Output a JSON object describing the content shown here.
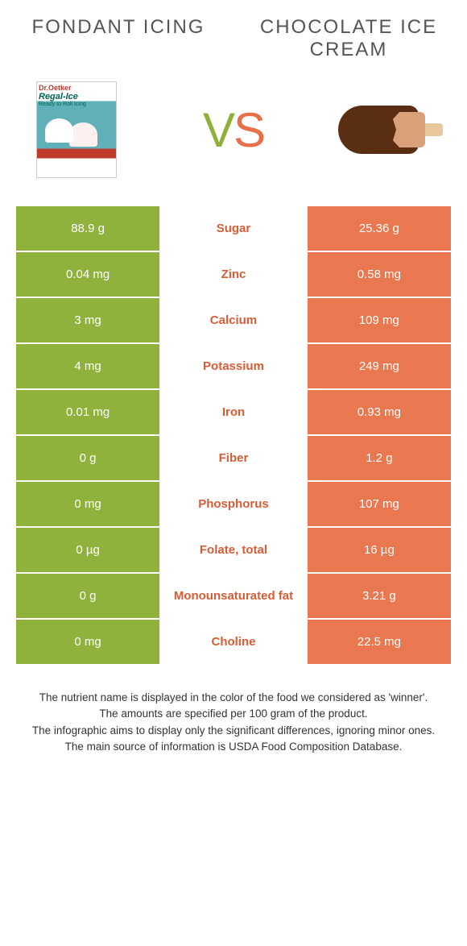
{
  "colors": {
    "green": "#8fb23c",
    "orange": "#e9774f",
    "green_text": "#6f8e2e",
    "orange_text": "#d85d36"
  },
  "header": {
    "left_title": "Fondant icing",
    "right_title": "Chocolate ice cream",
    "vs_v": "V",
    "vs_s": "S"
  },
  "rows": [
    {
      "left": "88.9 g",
      "label": "Sugar",
      "right": "25.36 g",
      "winner": "orange"
    },
    {
      "left": "0.04 mg",
      "label": "Zinc",
      "right": "0.58 mg",
      "winner": "orange"
    },
    {
      "left": "3 mg",
      "label": "Calcium",
      "right": "109 mg",
      "winner": "orange"
    },
    {
      "left": "4 mg",
      "label": "Potassium",
      "right": "249 mg",
      "winner": "orange"
    },
    {
      "left": "0.01 mg",
      "label": "Iron",
      "right": "0.93 mg",
      "winner": "orange"
    },
    {
      "left": "0 g",
      "label": "Fiber",
      "right": "1.2 g",
      "winner": "orange"
    },
    {
      "left": "0 mg",
      "label": "Phosphorus",
      "right": "107 mg",
      "winner": "orange"
    },
    {
      "left": "0 µg",
      "label": "Folate, total",
      "right": "16 µg",
      "winner": "orange"
    },
    {
      "left": "0 g",
      "label": "Monounsaturated fat",
      "right": "3.21 g",
      "winner": "orange"
    },
    {
      "left": "0 mg",
      "label": "Choline",
      "right": "22.5 mg",
      "winner": "orange"
    }
  ],
  "footnotes": [
    "The nutrient name is displayed in the color of the food we considered as 'winner'.",
    "The amounts are specified per 100 gram of the product.",
    "The infographic aims to display only the significant differences, ignoring minor ones.",
    "The main source of information is USDA Food Composition Database."
  ]
}
